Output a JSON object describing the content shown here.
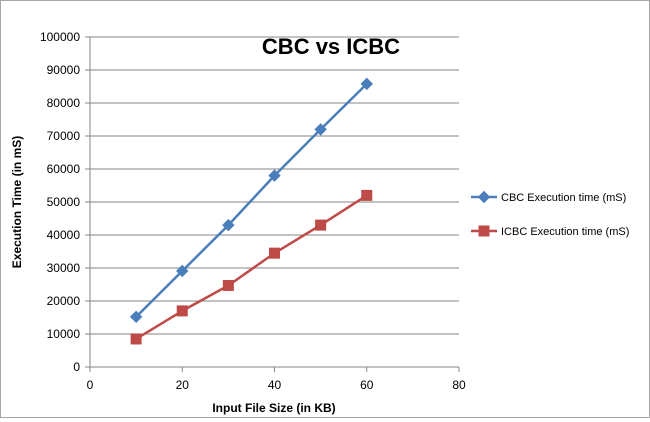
{
  "chart_data": {
    "type": "scatter",
    "title": "CBC vs ICBC",
    "xlabel": "Input File Size (in KB)",
    "ylabel": "Execution Time (in mS)",
    "xlim": [
      0,
      80
    ],
    "ylim": [
      0,
      100000
    ],
    "x_ticks": [
      0,
      20,
      40,
      60,
      80
    ],
    "y_ticks": [
      0,
      10000,
      20000,
      30000,
      40000,
      50000,
      60000,
      70000,
      80000,
      90000,
      100000
    ],
    "grid": "horizontal",
    "legend": "right",
    "x": [
      10,
      20,
      30,
      40,
      50,
      60
    ],
    "series": [
      {
        "name": "CBC Execution time (mS)",
        "marker": "diamond",
        "color": "#4a7ebb",
        "values": [
          15200,
          29100,
          43000,
          58000,
          72000,
          85800
        ]
      },
      {
        "name": "ICBC Execution time (mS)",
        "marker": "square",
        "color": "#be4b48",
        "values": [
          8500,
          17000,
          24700,
          34500,
          43000,
          52000
        ]
      }
    ]
  }
}
